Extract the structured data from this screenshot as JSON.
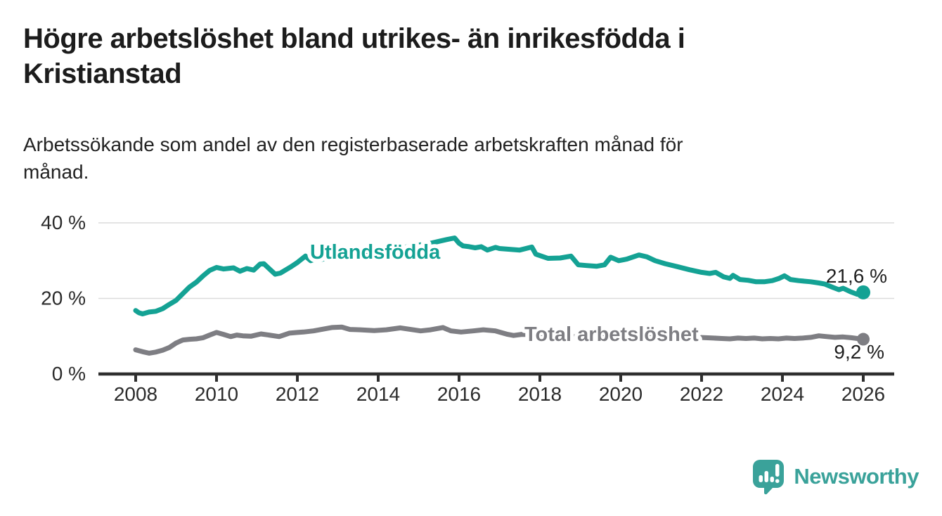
{
  "header": {
    "title": "Högre arbetslöshet bland utrikes- än inrikesfödda i\nKristianstad",
    "subtitle": "Arbetssökande som andel av den registerbaserade arbetskraften månad för\nmånad."
  },
  "footer": {
    "brand": "Newsworthy"
  },
  "colors": {
    "accent_teal": "#14a294",
    "line_gray": "#7e7e83",
    "grid": "#dcdcdc",
    "axis": "#2e2e2e",
    "text": "#1c1c1c",
    "logo_teal": "#3aa29a"
  },
  "chart_data": {
    "type": "line",
    "title": "",
    "xlabel": "",
    "ylabel": "",
    "ylim": [
      0,
      43
    ],
    "xlim": [
      2007.1,
      2026.8
    ],
    "grid": "horizontal",
    "legend_position": "inline-labels",
    "y_ticks": [
      {
        "value": 0,
        "label": "0 %"
      },
      {
        "value": 20,
        "label": "20 %"
      },
      {
        "value": 40,
        "label": "40 %"
      }
    ],
    "x_ticks": [
      {
        "value": 2008,
        "label": "2008"
      },
      {
        "value": 2010,
        "label": "2010"
      },
      {
        "value": 2012,
        "label": "2012"
      },
      {
        "value": 2014,
        "label": "2014"
      },
      {
        "value": 2016,
        "label": "2016"
      },
      {
        "value": 2018,
        "label": "2018"
      },
      {
        "value": 2020,
        "label": "2020"
      },
      {
        "value": 2022,
        "label": "2022"
      },
      {
        "value": 2024,
        "label": "2024"
      },
      {
        "value": 2026,
        "label": "2026"
      }
    ],
    "series": [
      {
        "name": "Utlandsfödda",
        "color": "#14a294",
        "end_label": "21,6 %",
        "end_value": 21.6,
        "points": [
          [
            2008.0,
            16.8
          ],
          [
            2008.08,
            16.2
          ],
          [
            2008.17,
            15.9
          ],
          [
            2008.33,
            16.4
          ],
          [
            2008.5,
            16.6
          ],
          [
            2008.67,
            17.3
          ],
          [
            2008.83,
            18.4
          ],
          [
            2009.0,
            19.5
          ],
          [
            2009.17,
            21.3
          ],
          [
            2009.33,
            23.0
          ],
          [
            2009.5,
            24.3
          ],
          [
            2009.67,
            26.0
          ],
          [
            2009.83,
            27.4
          ],
          [
            2010.0,
            28.2
          ],
          [
            2010.17,
            27.8
          ],
          [
            2010.42,
            28.1
          ],
          [
            2010.58,
            27.2
          ],
          [
            2010.75,
            27.9
          ],
          [
            2010.92,
            27.5
          ],
          [
            2011.08,
            29.1
          ],
          [
            2011.17,
            29.2
          ],
          [
            2011.33,
            27.6
          ],
          [
            2011.45,
            26.4
          ],
          [
            2011.58,
            26.7
          ],
          [
            2011.83,
            28.3
          ],
          [
            2012.0,
            29.5
          ],
          [
            2012.2,
            31.2
          ],
          [
            2012.33,
            30.0
          ],
          [
            2012.5,
            30.6
          ],
          [
            2012.6,
            30.3
          ],
          [
            2012.75,
            30.8
          ],
          [
            2013.0,
            31.2
          ],
          [
            2013.25,
            31.6
          ],
          [
            2013.5,
            31.9
          ],
          [
            2013.75,
            32.2
          ],
          [
            2014.0,
            32.6
          ],
          [
            2014.25,
            33.0
          ],
          [
            2014.5,
            33.3
          ],
          [
            2014.75,
            33.7
          ],
          [
            2015.0,
            34.1
          ],
          [
            2015.25,
            34.5
          ],
          [
            2015.5,
            35.1
          ],
          [
            2015.7,
            35.6
          ],
          [
            2015.89,
            36.0
          ],
          [
            2016.0,
            34.6
          ],
          [
            2016.1,
            33.9
          ],
          [
            2016.25,
            33.7
          ],
          [
            2016.4,
            33.4
          ],
          [
            2016.55,
            33.7
          ],
          [
            2016.7,
            32.8
          ],
          [
            2016.9,
            33.5
          ],
          [
            2017.0,
            33.2
          ],
          [
            2017.25,
            33.0
          ],
          [
            2017.5,
            32.8
          ],
          [
            2017.8,
            33.6
          ],
          [
            2017.9,
            31.7
          ],
          [
            2018.2,
            30.6
          ],
          [
            2018.5,
            30.7
          ],
          [
            2018.77,
            31.2
          ],
          [
            2018.95,
            28.9
          ],
          [
            2019.15,
            28.7
          ],
          [
            2019.4,
            28.5
          ],
          [
            2019.6,
            28.9
          ],
          [
            2019.75,
            30.9
          ],
          [
            2019.95,
            30.0
          ],
          [
            2020.15,
            30.4
          ],
          [
            2020.45,
            31.5
          ],
          [
            2020.65,
            31.0
          ],
          [
            2020.85,
            30.0
          ],
          [
            2021.1,
            29.2
          ],
          [
            2021.4,
            28.4
          ],
          [
            2021.7,
            27.6
          ],
          [
            2022.0,
            26.9
          ],
          [
            2022.2,
            26.6
          ],
          [
            2022.35,
            26.9
          ],
          [
            2022.55,
            25.7
          ],
          [
            2022.7,
            25.3
          ],
          [
            2022.78,
            26.1
          ],
          [
            2022.95,
            25.0
          ],
          [
            2023.15,
            24.8
          ],
          [
            2023.35,
            24.4
          ],
          [
            2023.55,
            24.4
          ],
          [
            2023.75,
            24.7
          ],
          [
            2023.92,
            25.3
          ],
          [
            2024.05,
            26.0
          ],
          [
            2024.2,
            25.0
          ],
          [
            2024.4,
            24.7
          ],
          [
            2024.7,
            24.4
          ],
          [
            2024.9,
            24.1
          ],
          [
            2025.05,
            23.8
          ],
          [
            2025.25,
            22.9
          ],
          [
            2025.4,
            22.3
          ],
          [
            2025.5,
            22.7
          ],
          [
            2025.7,
            21.7
          ],
          [
            2025.85,
            21.1
          ],
          [
            2026.0,
            21.6
          ]
        ]
      },
      {
        "name": "Total arbetslöshet",
        "color": "#7e7e83",
        "end_label": "9,2 %",
        "end_value": 9.2,
        "points": [
          [
            2008.0,
            6.4
          ],
          [
            2008.17,
            5.9
          ],
          [
            2008.33,
            5.5
          ],
          [
            2008.5,
            5.8
          ],
          [
            2008.67,
            6.3
          ],
          [
            2008.83,
            7.0
          ],
          [
            2009.0,
            8.2
          ],
          [
            2009.17,
            9.0
          ],
          [
            2009.33,
            9.2
          ],
          [
            2009.5,
            9.3
          ],
          [
            2009.67,
            9.6
          ],
          [
            2009.83,
            10.3
          ],
          [
            2010.0,
            11.0
          ],
          [
            2010.17,
            10.5
          ],
          [
            2010.35,
            9.9
          ],
          [
            2010.5,
            10.3
          ],
          [
            2010.65,
            10.1
          ],
          [
            2010.85,
            10.0
          ],
          [
            2011.1,
            10.6
          ],
          [
            2011.3,
            10.3
          ],
          [
            2011.55,
            9.9
          ],
          [
            2011.8,
            10.8
          ],
          [
            2012.0,
            11.0
          ],
          [
            2012.15,
            11.1
          ],
          [
            2012.4,
            11.4
          ],
          [
            2012.6,
            11.8
          ],
          [
            2012.85,
            12.3
          ],
          [
            2013.1,
            12.4
          ],
          [
            2013.3,
            11.8
          ],
          [
            2013.55,
            11.7
          ],
          [
            2013.9,
            11.5
          ],
          [
            2014.2,
            11.7
          ],
          [
            2014.55,
            12.2
          ],
          [
            2014.8,
            11.8
          ],
          [
            2015.05,
            11.4
          ],
          [
            2015.3,
            11.7
          ],
          [
            2015.6,
            12.3
          ],
          [
            2015.8,
            11.4
          ],
          [
            2016.05,
            11.1
          ],
          [
            2016.35,
            11.4
          ],
          [
            2016.6,
            11.7
          ],
          [
            2016.9,
            11.4
          ],
          [
            2017.2,
            10.5
          ],
          [
            2017.35,
            10.2
          ],
          [
            2017.55,
            10.5
          ],
          [
            2017.8,
            10.4
          ],
          [
            2018.1,
            10.2
          ],
          [
            2018.4,
            10.1
          ],
          [
            2018.7,
            10.0
          ],
          [
            2019.0,
            9.8
          ],
          [
            2019.3,
            9.7
          ],
          [
            2019.6,
            9.9
          ],
          [
            2019.9,
            10.2
          ],
          [
            2020.2,
            10.6
          ],
          [
            2020.45,
            11.0
          ],
          [
            2020.7,
            10.7
          ],
          [
            2021.0,
            10.4
          ],
          [
            2021.3,
            10.1
          ],
          [
            2021.6,
            9.9
          ],
          [
            2021.9,
            9.7
          ],
          [
            2022.1,
            9.6
          ],
          [
            2022.3,
            9.5
          ],
          [
            2022.5,
            9.4
          ],
          [
            2022.7,
            9.3
          ],
          [
            2022.9,
            9.5
          ],
          [
            2023.1,
            9.4
          ],
          [
            2023.3,
            9.5
          ],
          [
            2023.5,
            9.3
          ],
          [
            2023.7,
            9.4
          ],
          [
            2023.9,
            9.3
          ],
          [
            2024.1,
            9.5
          ],
          [
            2024.3,
            9.4
          ],
          [
            2024.5,
            9.5
          ],
          [
            2024.7,
            9.7
          ],
          [
            2024.9,
            10.1
          ],
          [
            2025.1,
            9.9
          ],
          [
            2025.3,
            9.7
          ],
          [
            2025.5,
            9.8
          ],
          [
            2025.7,
            9.6
          ],
          [
            2025.85,
            9.4
          ],
          [
            2026.0,
            9.2
          ]
        ]
      }
    ]
  }
}
